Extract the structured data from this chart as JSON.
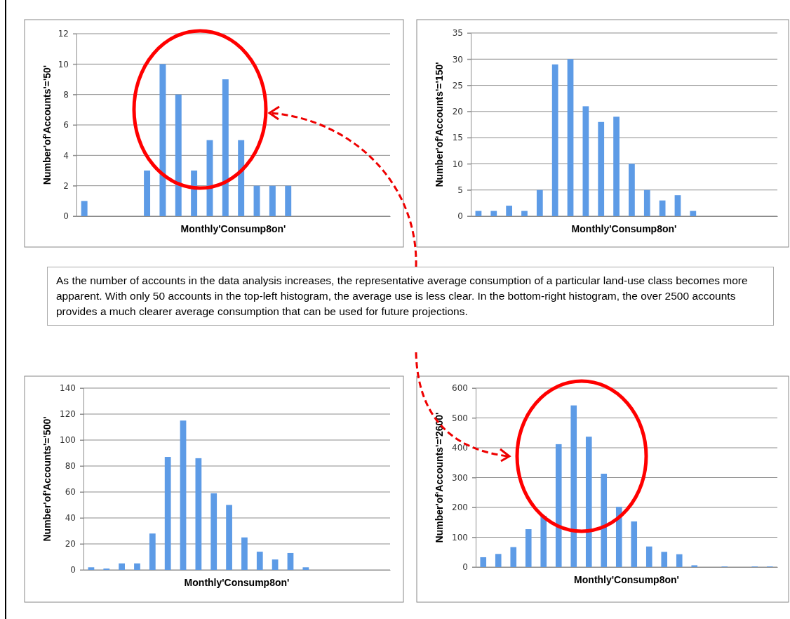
{
  "chart_data": [
    {
      "type": "bar",
      "xlabel": "Monthly'Consump8on'",
      "ylabel": "Number'of'Accounts'='50'",
      "categories": [
        null,
        null,
        null,
        null,
        null,
        null,
        null,
        null,
        null,
        null,
        null,
        null,
        null,
        null,
        null,
        null,
        null,
        null,
        null,
        null
      ],
      "values": [
        1,
        0,
        0,
        0,
        3,
        10,
        8,
        3,
        5,
        9,
        5,
        2,
        2,
        2,
        0,
        0,
        0,
        0,
        0,
        0
      ],
      "color": "#5d9be6",
      "ylim": [
        0,
        12
      ],
      "yticks": [
        0,
        2,
        4,
        6,
        8,
        10,
        12
      ],
      "grid": "y",
      "tick_labels": "y"
    },
    {
      "type": "bar",
      "xlabel": "Monthly'Consump8on'",
      "ylabel": "Number'of'Accounts'='150'",
      "categories": [
        null,
        null,
        null,
        null,
        null,
        null,
        null,
        null,
        null,
        null,
        null,
        null,
        null,
        null,
        null,
        null,
        null,
        null,
        null,
        null
      ],
      "values": [
        1,
        1,
        2,
        1,
        5,
        29,
        30,
        21,
        18,
        19,
        10,
        5,
        3,
        4,
        1,
        0,
        0,
        0,
        0,
        0
      ],
      "color": "#5d9be6",
      "ylim": [
        0,
        35
      ],
      "yticks": [
        0,
        5,
        10,
        15,
        20,
        25,
        30,
        35
      ],
      "grid": "y",
      "tick_labels": "y"
    },
    {
      "type": "other",
      "annotations": [
        "As the number of accounts in the data analysis increases, the representative average consumption of a particular land-use class becomes more apparent.  With only 50 accounts in the top-left histogram, the average use is less clear.  In the bottom-right histogram, the over 2500 accounts provides a much clearer average consumption that can be used for future projections."
      ]
    },
    {
      "type": "bar",
      "xlabel": "Monthly'Consump8on'",
      "ylabel": "Number'of'Accounts'='500'",
      "categories": [
        null,
        null,
        null,
        null,
        null,
        null,
        null,
        null,
        null,
        null,
        null,
        null,
        null,
        null,
        null,
        null,
        null,
        null,
        null,
        null
      ],
      "values": [
        2,
        1,
        5,
        5,
        28,
        87,
        115,
        86,
        59,
        50,
        25,
        14,
        8,
        13,
        2,
        0,
        0,
        0,
        0,
        0
      ],
      "color": "#5d9be6",
      "ylim": [
        0,
        140
      ],
      "yticks": [
        0,
        20,
        40,
        60,
        80,
        100,
        120,
        140
      ],
      "grid": "y",
      "tick_labels": "y"
    },
    {
      "type": "bar",
      "xlabel": "Monthly'Consump8on'",
      "ylabel": "Number'of'Accounts'='2600'",
      "categories": [
        null,
        null,
        null,
        null,
        null,
        null,
        null,
        null,
        null,
        null,
        null,
        null,
        null,
        null,
        null,
        null,
        null,
        null,
        null,
        null
      ],
      "values": [
        33,
        44,
        67,
        127,
        172,
        412,
        542,
        437,
        313,
        202,
        153,
        69,
        51,
        43,
        6,
        0,
        2,
        0,
        2,
        2
      ],
      "color": "#5d9be6",
      "ylim": [
        0,
        600
      ],
      "yticks": [
        0,
        100,
        200,
        300,
        400,
        500,
        600
      ],
      "grid": "y",
      "tick_labels": "y"
    }
  ]
}
